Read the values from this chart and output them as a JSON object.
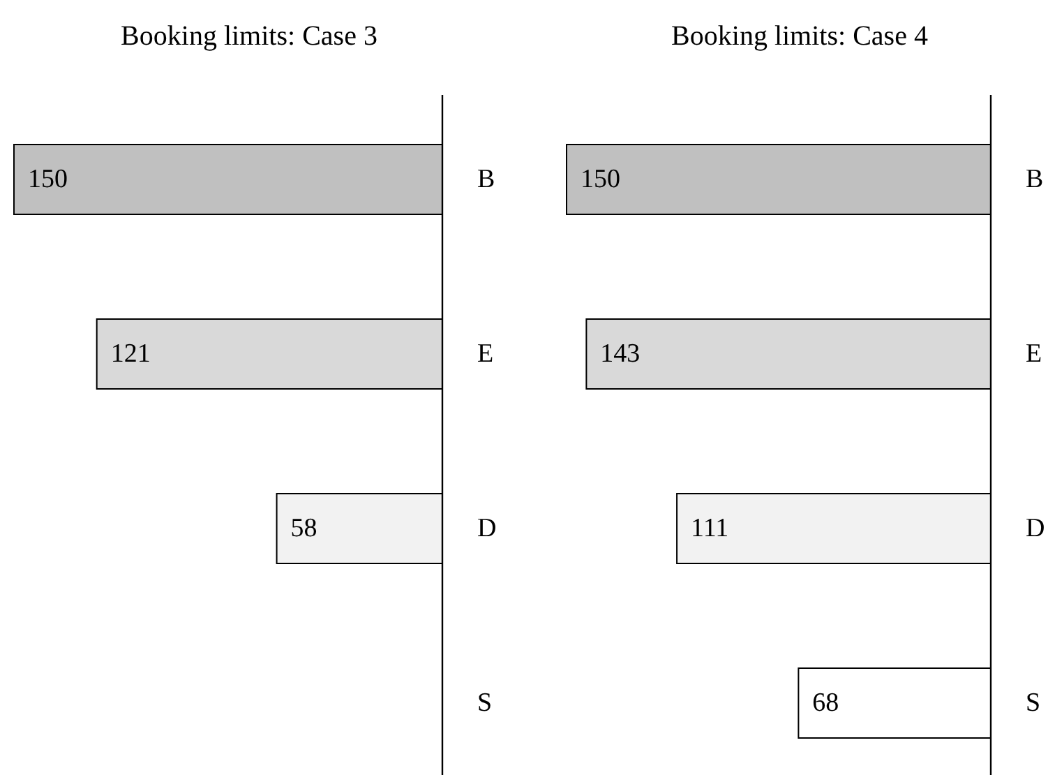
{
  "chart_data": [
    {
      "type": "bar",
      "orientation": "horizontal",
      "title": "Booking limits: Case 3",
      "categories": [
        "B",
        "E",
        "D",
        "S"
      ],
      "values": [
        150,
        121,
        58,
        null
      ],
      "colors": [
        "#c0c0c0",
        "#d9d9d9",
        "#f2f2f2",
        null
      ],
      "xlim": [
        150,
        0
      ],
      "tick_labels": "y",
      "data_labels": true
    },
    {
      "type": "bar",
      "orientation": "horizontal",
      "title": "Booking limits: Case 4",
      "categories": [
        "B",
        "E",
        "D",
        "S"
      ],
      "values": [
        150,
        143,
        111,
        68
      ],
      "colors": [
        "#c0c0c0",
        "#d9d9d9",
        "#f2f2f2",
        "#ffffff"
      ],
      "xlim": [
        150,
        0
      ],
      "tick_labels": "y",
      "data_labels": true
    }
  ]
}
